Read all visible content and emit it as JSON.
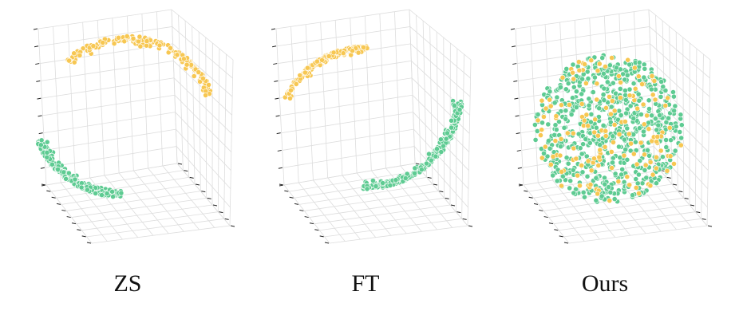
{
  "colors": {
    "green": "#5ECB92",
    "yellow": "#F7C752",
    "grid": "#DDDDDD",
    "tick": "#222222",
    "caption": "#111111"
  },
  "chart_data": [
    {
      "type": "scatter",
      "projection": "3d",
      "title": "ZS",
      "grid": true,
      "series": [
        {
          "color": "#F7C752",
          "shape": "arc",
          "region": "upper-right",
          "points": 190
        },
        {
          "color": "#5ECB92",
          "shape": "arc",
          "region": "lower-left",
          "points": 230
        }
      ]
    },
    {
      "type": "scatter",
      "projection": "3d",
      "title": "FT",
      "grid": true,
      "series": [
        {
          "color": "#F7C752",
          "shape": "arc",
          "region": "upper-left",
          "points": 180
        },
        {
          "color": "#5ECB92",
          "shape": "arc",
          "region": "lower-right",
          "points": 250
        }
      ]
    },
    {
      "type": "scatter",
      "projection": "3d",
      "title": "Ours",
      "grid": true,
      "series": [
        {
          "color": "#5ECB92",
          "shape": "disk",
          "region": "center",
          "points": 720
        },
        {
          "color": "#F7C752",
          "shape": "disk",
          "region": "center",
          "points": 150
        }
      ]
    }
  ]
}
